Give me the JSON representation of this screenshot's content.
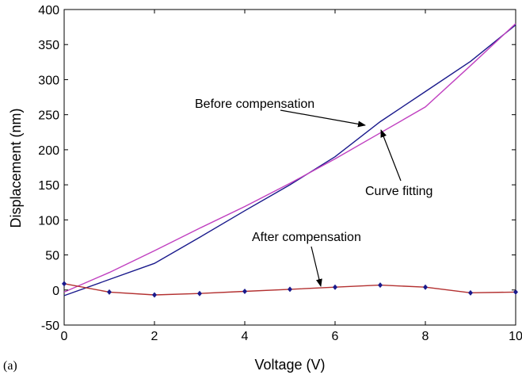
{
  "panel_label": "(a)",
  "chart_data": {
    "type": "line",
    "xlabel": "Voltage (V)",
    "ylabel": "Displacement (nm)",
    "xlim": [
      0,
      10
    ],
    "ylim": [
      -50,
      400
    ],
    "xticks": [
      0,
      2,
      4,
      6,
      8,
      10
    ],
    "yticks": [
      -50,
      0,
      50,
      100,
      150,
      200,
      250,
      300,
      350,
      400
    ],
    "grid": false,
    "series": [
      {
        "color": "#1a1a8c",
        "x": [
          0,
          1,
          2,
          3,
          4,
          5,
          6,
          7,
          8,
          9,
          10
        ],
        "y": [
          -8,
          15,
          38,
          75,
          113,
          150,
          190,
          240,
          283,
          326,
          378
        ]
      },
      {
        "color": "#c040c0",
        "x": [
          0,
          1,
          2,
          3,
          4,
          5,
          6,
          7,
          8,
          9,
          10
        ],
        "y": [
          -3,
          25,
          56,
          88,
          119,
          152,
          187,
          224,
          261,
          320,
          380
        ]
      },
      {
        "color": "#b33030",
        "marker_color": "#1a1a8c",
        "x": [
          0,
          1,
          2,
          3,
          4,
          5,
          6,
          7,
          8,
          9,
          10
        ],
        "y": [
          9,
          -3,
          -7,
          -5,
          -2,
          1,
          4,
          7,
          4,
          -4,
          -3
        ]
      }
    ],
    "annotations": [
      {
        "text": "Before compensation"
      },
      {
        "text": "Curve fitting"
      },
      {
        "text": "After compensation"
      }
    ]
  }
}
